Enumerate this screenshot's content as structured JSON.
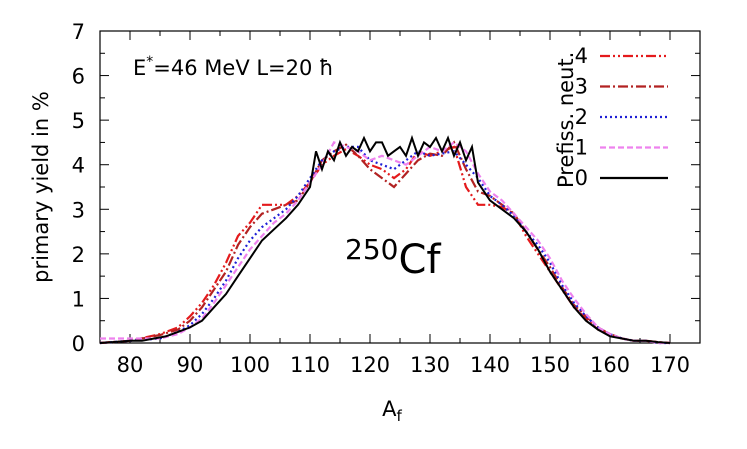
{
  "chart_data": {
    "type": "line",
    "title": "",
    "xlabel": "A",
    "xlabel_sub": "f",
    "ylabel": "primary yield in %",
    "xlim": [
      75,
      175
    ],
    "ylim": [
      0,
      7
    ],
    "xticks": [
      80,
      90,
      100,
      110,
      120,
      130,
      140,
      150,
      160,
      170
    ],
    "yticks": [
      0,
      1,
      2,
      3,
      4,
      5,
      6,
      7
    ],
    "grid": false,
    "legend_title": "Prefiss. neut.",
    "legend_position": "top-right",
    "annotation_energy": {
      "E_base": "E",
      "E_sup": "*",
      "E_rest": "=46 MeV  L=20 ħ"
    },
    "nucleus": {
      "mass": "250",
      "symbol": "Cf"
    },
    "series": [
      {
        "name": "4",
        "color": "#e41a1c",
        "dash": "10,3,2,3,2,3",
        "x": [
          75,
          80,
          85,
          88,
          90,
          92,
          94,
          96,
          98,
          100,
          102,
          104,
          106,
          108,
          110,
          112,
          114,
          116,
          118,
          120,
          122,
          124,
          126,
          128,
          130,
          132,
          134,
          136,
          138,
          140,
          142,
          144,
          146,
          148,
          150,
          152,
          154,
          156,
          158,
          160,
          162,
          164,
          166,
          168,
          170
        ],
        "y": [
          0.0,
          0.05,
          0.2,
          0.35,
          0.6,
          0.9,
          1.3,
          1.8,
          2.4,
          2.7,
          3.1,
          3.1,
          3.1,
          3.3,
          3.6,
          4.0,
          4.2,
          4.35,
          4.2,
          4.0,
          3.9,
          3.7,
          3.9,
          4.3,
          4.2,
          4.3,
          4.4,
          3.5,
          3.1,
          3.1,
          3.05,
          2.9,
          2.4,
          2.0,
          1.6,
          1.2,
          0.8,
          0.55,
          0.3,
          0.2,
          0.1,
          0.05,
          0.05,
          0.02,
          0.0
        ]
      },
      {
        "name": "3",
        "color": "#b22222",
        "dash": "10,3,2,3",
        "x": [
          75,
          80,
          85,
          88,
          90,
          92,
          94,
          96,
          98,
          100,
          102,
          104,
          106,
          108,
          110,
          112,
          114,
          116,
          118,
          120,
          122,
          124,
          126,
          128,
          130,
          132,
          134,
          136,
          138,
          140,
          142,
          144,
          146,
          148,
          150,
          152,
          154,
          156,
          158,
          160,
          162,
          164,
          166,
          168,
          170
        ],
        "y": [
          0.0,
          0.05,
          0.18,
          0.3,
          0.5,
          0.8,
          1.2,
          1.6,
          2.2,
          2.6,
          2.9,
          3.0,
          3.1,
          3.2,
          3.6,
          4.1,
          4.3,
          4.45,
          4.2,
          3.9,
          3.7,
          3.5,
          3.8,
          4.1,
          4.25,
          4.2,
          4.5,
          3.9,
          3.4,
          3.3,
          3.1,
          2.9,
          2.5,
          2.1,
          1.7,
          1.25,
          0.85,
          0.6,
          0.35,
          0.2,
          0.1,
          0.05,
          0.05,
          0.02,
          0.0
        ]
      },
      {
        "name": "2",
        "color": "#1f1fd6",
        "dash": "2,3",
        "x": [
          75,
          80,
          85,
          88,
          90,
          92,
          94,
          96,
          98,
          100,
          102,
          104,
          106,
          108,
          110,
          112,
          114,
          116,
          118,
          120,
          122,
          124,
          126,
          128,
          130,
          132,
          134,
          136,
          138,
          140,
          142,
          144,
          146,
          148,
          150,
          152,
          154,
          156,
          158,
          160,
          162,
          164,
          166,
          168,
          170
        ],
        "y": [
          0.0,
          0.05,
          0.1,
          0.25,
          0.4,
          0.65,
          1.0,
          1.4,
          1.9,
          2.3,
          2.6,
          2.8,
          3.0,
          3.3,
          3.7,
          4.1,
          4.3,
          4.4,
          4.4,
          4.1,
          4.0,
          3.9,
          4.1,
          4.3,
          4.2,
          4.25,
          4.3,
          4.0,
          3.7,
          3.3,
          3.1,
          2.85,
          2.5,
          2.2,
          1.8,
          1.3,
          0.9,
          0.6,
          0.35,
          0.2,
          0.1,
          0.05,
          0.05,
          0.0,
          0.0
        ]
      },
      {
        "name": "1",
        "color": "#ee82ee",
        "dash": "6,3",
        "x": [
          75,
          80,
          85,
          88,
          90,
          92,
          94,
          96,
          98,
          100,
          102,
          104,
          106,
          108,
          110,
          112,
          114,
          116,
          118,
          120,
          122,
          124,
          126,
          128,
          130,
          132,
          134,
          136,
          138,
          140,
          142,
          144,
          146,
          148,
          150,
          152,
          154,
          156,
          158,
          160,
          162,
          164,
          166,
          168,
          170
        ],
        "y": [
          0.1,
          0.1,
          0.1,
          0.2,
          0.35,
          0.55,
          0.9,
          1.3,
          1.7,
          2.1,
          2.4,
          2.7,
          2.9,
          3.2,
          3.6,
          4.0,
          4.5,
          4.4,
          4.3,
          4.1,
          4.2,
          4.1,
          4.0,
          4.2,
          4.4,
          4.3,
          4.5,
          4.3,
          3.8,
          3.4,
          3.2,
          2.9,
          2.6,
          2.3,
          1.9,
          1.4,
          1.0,
          0.65,
          0.35,
          0.2,
          0.1,
          0.05,
          0.05,
          0.0,
          0.0
        ]
      },
      {
        "name": "0",
        "color": "#000000",
        "dash": "",
        "x": [
          75,
          80,
          82,
          84,
          86,
          88,
          90,
          92,
          94,
          96,
          98,
          100,
          102,
          104,
          106,
          108,
          110,
          111,
          112,
          113,
          114,
          115,
          116,
          117,
          118,
          119,
          120,
          121,
          122,
          123,
          124,
          125,
          126,
          127,
          128,
          129,
          130,
          131,
          132,
          133,
          134,
          135,
          136,
          137,
          138,
          140,
          142,
          144,
          146,
          148,
          150,
          152,
          154,
          156,
          158,
          160,
          162,
          164,
          166,
          168,
          170
        ],
        "y": [
          0.0,
          0.05,
          0.05,
          0.1,
          0.15,
          0.25,
          0.35,
          0.5,
          0.8,
          1.1,
          1.5,
          1.9,
          2.3,
          2.55,
          2.8,
          3.1,
          3.5,
          4.3,
          3.9,
          4.3,
          4.1,
          4.5,
          4.2,
          4.4,
          4.3,
          4.6,
          4.3,
          4.5,
          4.5,
          4.2,
          4.3,
          4.4,
          4.2,
          4.6,
          4.2,
          4.5,
          4.4,
          4.6,
          4.3,
          4.6,
          4.2,
          4.5,
          4.1,
          4.4,
          3.6,
          3.2,
          3.0,
          2.8,
          2.5,
          2.1,
          1.6,
          1.2,
          0.8,
          0.5,
          0.3,
          0.15,
          0.1,
          0.05,
          0.05,
          0.02,
          0.0
        ]
      }
    ]
  }
}
